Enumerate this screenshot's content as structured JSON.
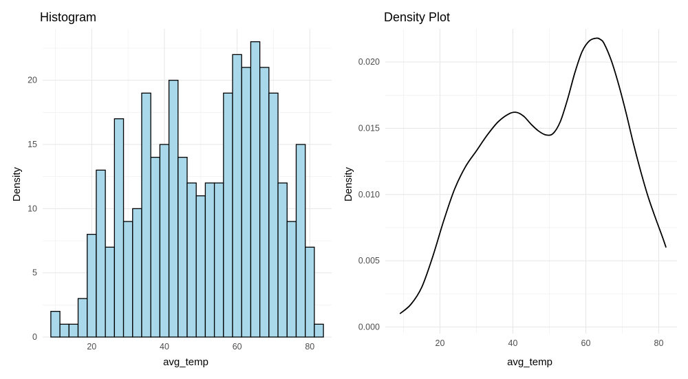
{
  "chart_data": [
    {
      "type": "bar",
      "title": "Histogram",
      "xlabel": "avg_temp",
      "ylabel": "Density",
      "xlim": [
        6.5,
        86
      ],
      "ylim": [
        0,
        24
      ],
      "xticks": [
        20,
        40,
        60,
        80
      ],
      "yticks": [
        0,
        5,
        10,
        15,
        20
      ],
      "bin_width": 2.5,
      "bin_start": 8.75,
      "values": [
        2,
        1,
        1,
        3,
        8,
        13,
        7,
        17,
        9,
        10,
        19,
        14,
        15,
        20,
        14,
        12,
        11,
        12,
        12,
        19,
        22,
        21,
        23,
        21,
        19,
        12,
        9,
        15,
        7,
        1
      ],
      "fill": "#a8d8ea",
      "stroke": "#000000",
      "grid": true
    },
    {
      "type": "line",
      "title": "Density Plot",
      "xlabel": "avg_temp",
      "ylabel": "Density",
      "xlim": [
        5,
        85
      ],
      "ylim": [
        -0.0005,
        0.0225
      ],
      "xticks": [
        20,
        40,
        60,
        80
      ],
      "yticks": [
        0,
        0.005,
        0.01,
        0.015,
        0.02
      ],
      "ytick_labels": [
        "0.000",
        "0.005",
        "0.010",
        "0.015",
        "0.020"
      ],
      "x": [
        9,
        12,
        15,
        18,
        21,
        24,
        27,
        30,
        33,
        36,
        39,
        41,
        43,
        45,
        47,
        49,
        51,
        53,
        55,
        57,
        59,
        61,
        63,
        64,
        65,
        67,
        69,
        71,
        73,
        75,
        77,
        79,
        81,
        82
      ],
      "y": [
        0.001,
        0.0017,
        0.003,
        0.0053,
        0.008,
        0.0104,
        0.0121,
        0.0133,
        0.0145,
        0.0155,
        0.0161,
        0.0162,
        0.0159,
        0.0153,
        0.0148,
        0.0145,
        0.0146,
        0.0155,
        0.0172,
        0.0192,
        0.0208,
        0.0216,
        0.0218,
        0.0217,
        0.0214,
        0.0201,
        0.0183,
        0.0162,
        0.0139,
        0.0118,
        0.0099,
        0.0083,
        0.0068,
        0.006
      ],
      "line_color": "#000000",
      "grid": true
    }
  ]
}
